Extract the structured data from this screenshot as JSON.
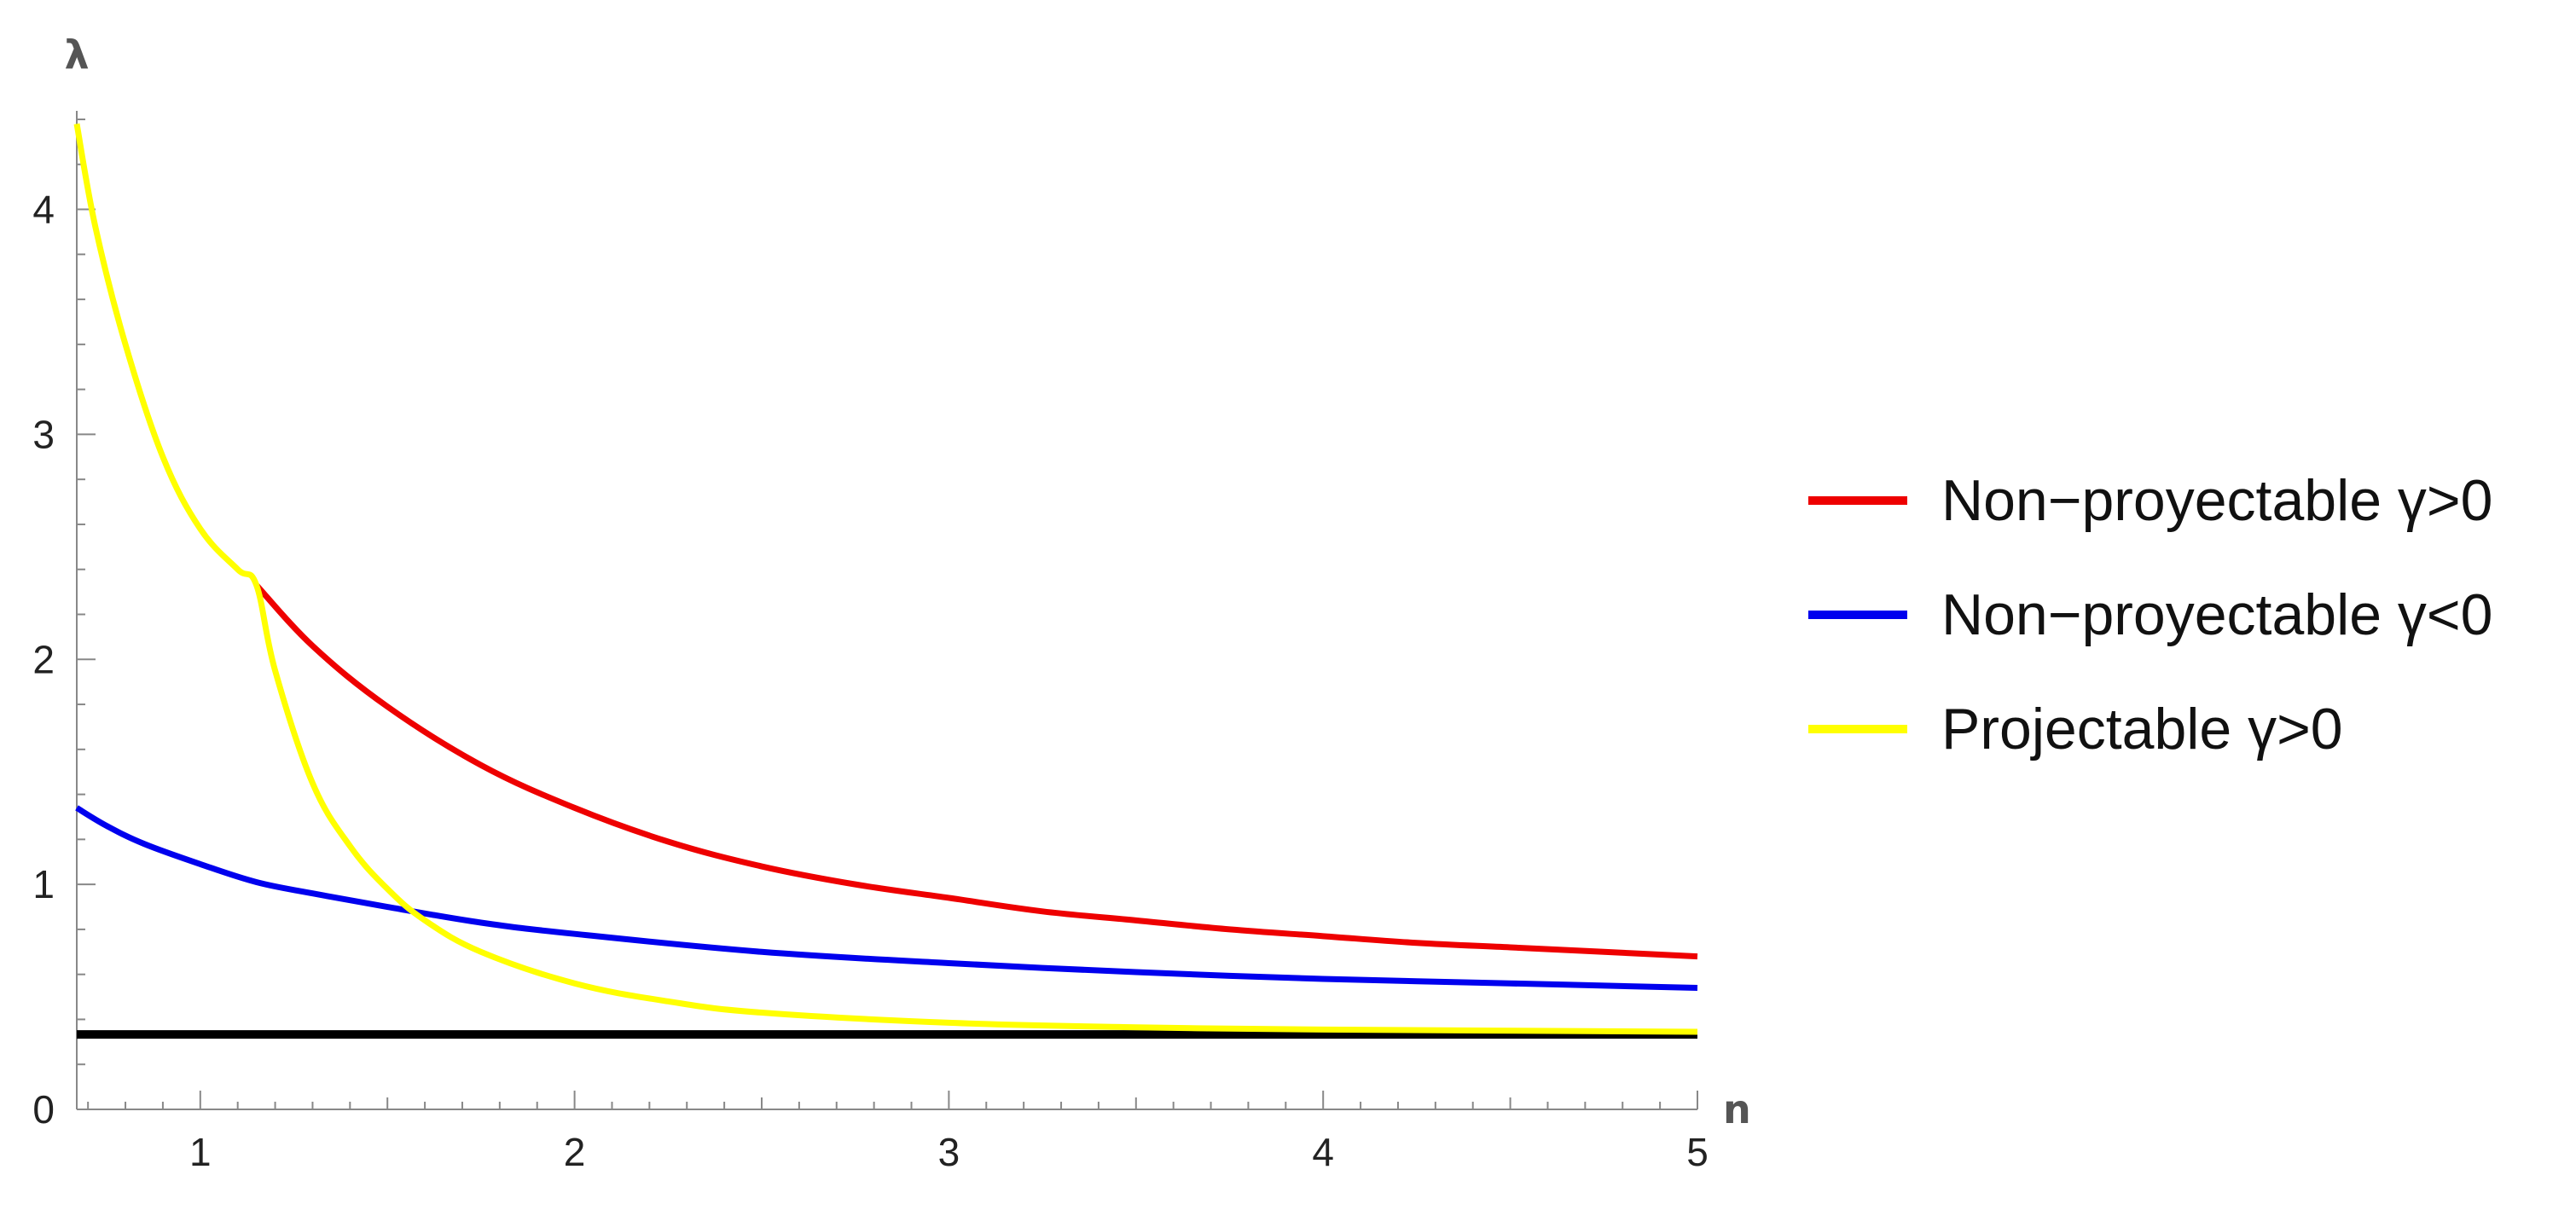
{
  "chart_data": {
    "type": "line",
    "title": "",
    "xlabel": "n",
    "ylabel": "λ",
    "xlim": [
      0.67,
      5
    ],
    "ylim": [
      0,
      4.4
    ],
    "x_ticks": [
      "1",
      "2",
      "3",
      "4",
      "5"
    ],
    "y_ticks": [
      "0",
      "1",
      "2",
      "3",
      "4"
    ],
    "grid": false,
    "legend_position": "right",
    "series": [
      {
        "name": "Non−proyectable γ>0",
        "color": "#ee0000",
        "x": [
          1.15,
          1.3,
          1.5,
          1.75,
          2,
          2.25,
          2.5,
          2.75,
          3,
          3.25,
          3.5,
          3.75,
          4,
          4.25,
          4.5,
          4.75,
          5
        ],
        "y": [
          2.33,
          2.06,
          1.79,
          1.53,
          1.34,
          1.19,
          1.08,
          1.0,
          0.94,
          0.88,
          0.84,
          0.8,
          0.77,
          0.74,
          0.72,
          0.7,
          0.68
        ]
      },
      {
        "name": "Non−proyectable γ<0",
        "color": "#0000ee",
        "x": [
          0.67,
          0.75,
          0.85,
          1,
          1.15,
          1.3,
          1.5,
          1.75,
          2,
          2.5,
          3,
          3.5,
          4,
          4.5,
          5
        ],
        "y": [
          1.34,
          1.26,
          1.18,
          1.09,
          1.01,
          0.96,
          0.9,
          0.83,
          0.78,
          0.7,
          0.65,
          0.61,
          0.58,
          0.56,
          0.54
        ]
      },
      {
        "name": "Projectable γ>0",
        "color": "#ffff00",
        "x": [
          0.67,
          0.72,
          0.8,
          0.9,
          1,
          1.1,
          1.15,
          1.2,
          1.3,
          1.4,
          1.5,
          1.6,
          1.75,
          2,
          2.25,
          2.5,
          3,
          3.5,
          4,
          5
        ],
        "y": [
          4.38,
          3.92,
          3.4,
          2.9,
          2.58,
          2.4,
          2.33,
          1.95,
          1.45,
          1.17,
          0.98,
          0.84,
          0.7,
          0.56,
          0.48,
          0.43,
          0.385,
          0.365,
          0.355,
          0.345
        ]
      },
      {
        "color": "#000000",
        "x": [
          0.67,
          5
        ],
        "y": [
          0.333,
          0.333
        ]
      }
    ]
  }
}
